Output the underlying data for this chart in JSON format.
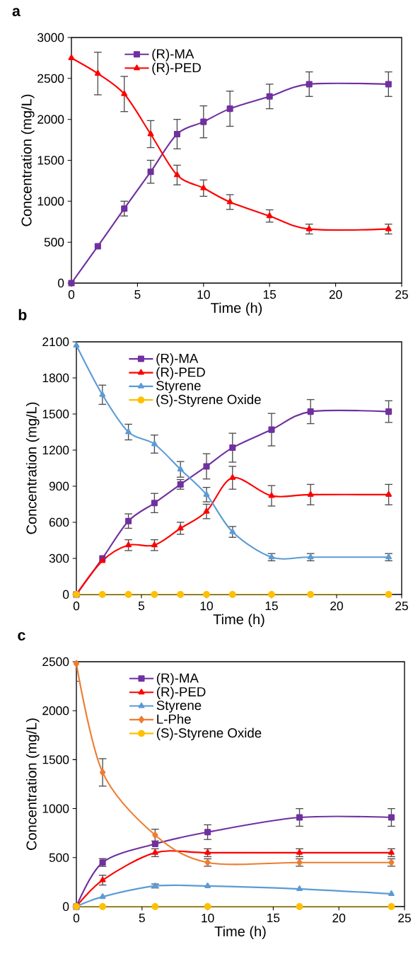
{
  "chart_data": [
    {
      "type": "line",
      "title": "a",
      "xlabel": "Time (h)",
      "ylabel": "Concentration (mg/L)",
      "x": [
        0,
        2,
        4,
        6,
        8,
        10,
        12,
        15,
        18,
        24
      ],
      "xlim": [
        0,
        25
      ],
      "ylim": [
        0,
        3000
      ],
      "xticks": [
        0,
        5,
        10,
        15,
        20,
        25
      ],
      "yticks": [
        0,
        500,
        1000,
        1500,
        2000,
        2500,
        3000
      ],
      "legend": "top left",
      "grid": false,
      "series": [
        {
          "name": "(R)-MA",
          "color": "#7030a0",
          "marker": "square",
          "values": [
            0,
            450,
            910,
            1360,
            1820,
            1970,
            2130,
            2280,
            2430,
            2430
          ],
          "errors": [
            null,
            null,
            90,
            140,
            180,
            195,
            215,
            150,
            150,
            150
          ]
        },
        {
          "name": "(R)-PED",
          "color": "#ff0000",
          "marker": "triangle",
          "values": [
            2750,
            2560,
            2310,
            1820,
            1320,
            1160,
            990,
            820,
            660,
            660
          ],
          "errors": [
            null,
            260,
            215,
            165,
            120,
            100,
            90,
            75,
            60,
            60
          ]
        }
      ]
    },
    {
      "type": "line",
      "title": "b",
      "xlabel": "Time (h)",
      "ylabel": "Concentration (mg/L)",
      "x": [
        0,
        2,
        4,
        6,
        8,
        10,
        12,
        15,
        18,
        24
      ],
      "xlim": [
        0,
        25
      ],
      "ylim": [
        0,
        2100
      ],
      "xticks": [
        0,
        5,
        10,
        15,
        20,
        25
      ],
      "yticks": [
        0,
        300,
        600,
        900,
        1200,
        1500,
        1800,
        2100
      ],
      "legend": "top left",
      "grid": false,
      "series": [
        {
          "name": "(R)-MA",
          "color": "#7030a0",
          "marker": "square",
          "values": [
            0,
            300,
            610,
            760,
            915,
            1065,
            1220,
            1370,
            1520,
            1520
          ],
          "errors": [
            null,
            null,
            60,
            80,
            40,
            105,
            120,
            135,
            100,
            90
          ]
        },
        {
          "name": "(R)-PED",
          "color": "#ff0000",
          "marker": "triangle",
          "values": [
            0,
            280,
            410,
            410,
            550,
            690,
            970,
            820,
            830,
            830
          ],
          "errors": [
            null,
            null,
            45,
            45,
            50,
            60,
            95,
            85,
            85,
            85
          ]
        },
        {
          "name": "Styrene",
          "color": "#5b9bd5",
          "marker": "triangle",
          "values": [
            2070,
            1660,
            1350,
            1250,
            1040,
            830,
            520,
            310,
            310,
            310
          ],
          "errors": [
            null,
            80,
            65,
            75,
            65,
            60,
            45,
            30,
            30,
            30
          ]
        },
        {
          "name": "(S)-Styrene Oxide",
          "color": "#ffc000",
          "marker": "circle",
          "values": [
            0,
            0,
            0,
            0,
            0,
            0,
            0,
            0,
            0,
            0
          ]
        }
      ]
    },
    {
      "type": "line",
      "title": "c",
      "xlabel": "Time (h)",
      "ylabel": "Concentration (mg/L)",
      "x": [
        0,
        2,
        6,
        10,
        17,
        24
      ],
      "xlim": [
        0,
        25
      ],
      "ylim": [
        0,
        2500
      ],
      "xticks": [
        0,
        5,
        10,
        15,
        20,
        25
      ],
      "yticks": [
        0,
        500,
        1000,
        1500,
        2000,
        2500
      ],
      "legend": "top left",
      "grid": false,
      "series": [
        {
          "name": "(R)-MA",
          "color": "#7030a0",
          "marker": "square",
          "values": [
            0,
            450,
            640,
            760,
            910,
            910
          ],
          "errors": [
            null,
            40,
            null,
            75,
            90,
            90
          ]
        },
        {
          "name": "(R)-PED",
          "color": "#ff0000",
          "marker": "triangle",
          "values": [
            0,
            270,
            550,
            550,
            550,
            550
          ],
          "errors": [
            null,
            50,
            40,
            40,
            40,
            40
          ]
        },
        {
          "name": "Styrene",
          "color": "#5b9bd5",
          "marker": "triangle",
          "values": [
            0,
            100,
            210,
            210,
            180,
            130
          ],
          "errors": [
            null,
            null,
            20,
            null,
            null,
            null
          ]
        },
        {
          "name": "L-Phe",
          "color": "#ed7d31",
          "marker": "diamond",
          "values": [
            2480,
            1370,
            730,
            450,
            450,
            450
          ],
          "errors": [
            180,
            140,
            60,
            38,
            38,
            38
          ]
        },
        {
          "name": "(S)-Styrene Oxide",
          "color": "#ffc000",
          "marker": "circle",
          "values": [
            0,
            0,
            0,
            0,
            0,
            0
          ]
        }
      ]
    }
  ]
}
